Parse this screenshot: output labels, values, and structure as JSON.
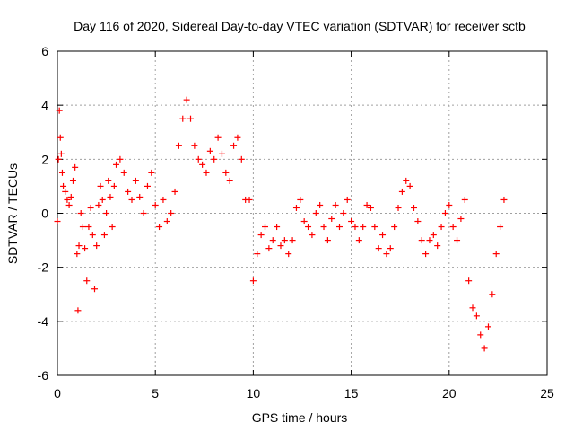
{
  "chart_data": {
    "type": "scatter",
    "title": "Day 116 of 2020, Sidereal Day-to-day VTEC variation (SDTVAR) for receiver sctb",
    "xlabel": "GPS time / hours",
    "ylabel": "SDTVAR / TECUs",
    "xlim": [
      0,
      25
    ],
    "ylim": [
      -6,
      6
    ],
    "xticks": [
      0,
      5,
      10,
      15,
      20,
      25
    ],
    "yticks": [
      -6,
      -4,
      -2,
      0,
      2,
      4,
      6
    ],
    "grid": true,
    "marker": "+",
    "color": "#ff0000",
    "series": [
      {
        "name": "SDTVAR",
        "x": [
          0.0,
          0.05,
          0.1,
          0.15,
          0.2,
          0.25,
          0.3,
          0.4,
          0.5,
          0.6,
          0.7,
          0.8,
          0.9,
          1.0,
          1.05,
          1.1,
          1.2,
          1.3,
          1.4,
          1.5,
          1.6,
          1.7,
          1.8,
          1.9,
          2.0,
          2.1,
          2.2,
          2.3,
          2.4,
          2.5,
          2.6,
          2.7,
          2.8,
          2.9,
          3.0,
          3.2,
          3.4,
          3.6,
          3.8,
          4.0,
          4.2,
          4.4,
          4.6,
          4.8,
          5.0,
          5.2,
          5.4,
          5.6,
          5.8,
          6.0,
          6.2,
          6.4,
          6.6,
          6.8,
          7.0,
          7.2,
          7.4,
          7.6,
          7.8,
          8.0,
          8.2,
          8.4,
          8.6,
          8.8,
          9.0,
          9.2,
          9.4,
          9.6,
          9.8,
          10.0,
          10.2,
          10.4,
          10.6,
          10.8,
          11.0,
          11.2,
          11.4,
          11.6,
          11.8,
          12.0,
          12.2,
          12.4,
          12.6,
          12.8,
          13.0,
          13.2,
          13.4,
          13.6,
          13.8,
          14.0,
          14.2,
          14.4,
          14.6,
          14.8,
          15.0,
          15.2,
          15.4,
          15.6,
          15.8,
          16.0,
          16.2,
          16.4,
          16.6,
          16.8,
          17.0,
          17.2,
          17.4,
          17.6,
          17.8,
          18.0,
          18.2,
          18.4,
          18.6,
          18.8,
          19.0,
          19.2,
          19.4,
          19.6,
          19.8,
          20.0,
          20.2,
          20.4,
          20.6,
          20.8,
          21.0,
          21.2,
          21.4,
          21.6,
          21.8,
          22.0,
          22.2,
          22.4,
          22.6,
          22.8
        ],
        "y": [
          -0.3,
          2.0,
          3.8,
          2.8,
          2.2,
          1.5,
          1.0,
          0.8,
          0.5,
          0.3,
          0.6,
          1.2,
          1.7,
          -1.5,
          -3.6,
          -1.2,
          0.0,
          -0.5,
          -1.3,
          -2.5,
          -0.5,
          0.2,
          -0.8,
          -2.8,
          -1.2,
          0.3,
          1.0,
          0.5,
          -0.8,
          0.0,
          1.2,
          0.6,
          -0.5,
          1.0,
          1.8,
          2.0,
          1.5,
          0.8,
          0.5,
          1.2,
          0.6,
          0.0,
          1.0,
          1.5,
          0.3,
          -0.5,
          0.5,
          -0.3,
          0.0,
          0.8,
          2.5,
          3.5,
          4.2,
          3.5,
          2.5,
          2.0,
          1.8,
          1.5,
          2.3,
          2.0,
          2.8,
          2.2,
          1.5,
          1.2,
          2.5,
          2.8,
          2.0,
          0.5,
          0.5,
          -2.5,
          -1.5,
          -0.8,
          -0.5,
          -1.3,
          -1.0,
          -0.5,
          -1.2,
          -1.0,
          -1.5,
          -1.0,
          0.2,
          0.5,
          -0.3,
          -0.5,
          -0.8,
          0.0,
          0.3,
          -0.5,
          -1.0,
          -0.2,
          0.3,
          -0.5,
          0.0,
          0.5,
          -0.3,
          -0.5,
          -1.0,
          -0.5,
          0.3,
          0.2,
          -0.5,
          -1.3,
          -0.8,
          -1.5,
          -1.3,
          -0.5,
          0.2,
          0.8,
          1.2,
          1.0,
          0.2,
          -0.3,
          -1.0,
          -1.5,
          -1.0,
          -0.8,
          -1.2,
          -0.5,
          0.0,
          0.3,
          -0.5,
          -1.0,
          -0.2,
          0.5,
          -2.5,
          -3.5,
          -3.8,
          -4.5,
          -5.0,
          -4.2,
          -3.0,
          -1.5,
          -0.5,
          0.5
        ]
      }
    ]
  }
}
